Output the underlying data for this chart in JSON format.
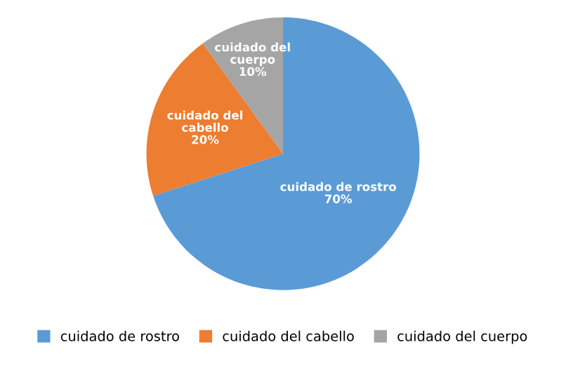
{
  "chart_data": {
    "type": "pie",
    "categories": [
      "cuidado de rostro",
      "cuidado del cabello",
      "cuidado del cuerpo"
    ],
    "values": [
      70,
      20,
      10
    ],
    "colors": [
      "#5b9bd5",
      "#ed7d31",
      "#a5a5a5"
    ],
    "value_labels": [
      "70%",
      "20%",
      "10%"
    ],
    "legend": "bottom"
  }
}
